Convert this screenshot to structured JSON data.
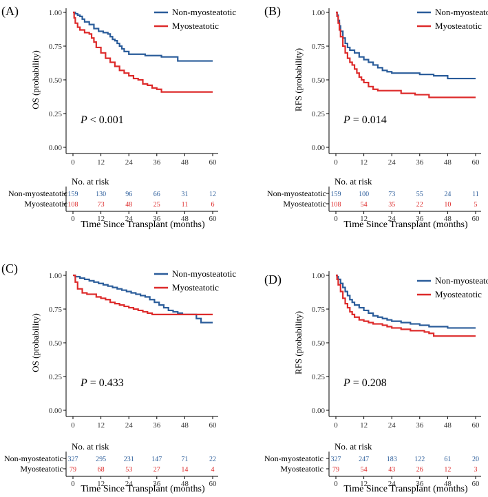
{
  "colors": {
    "non": "#2a5c9a",
    "myo": "#dd2a2a",
    "axis": "#000000",
    "tick": "#333333"
  },
  "common": {
    "risk_title": "No. at risk",
    "x_label": "Time Since Transplant (months)",
    "row_non": "Non-myosteatotic",
    "row_myo": "Myosteatotic"
  },
  "chart_data": [
    {
      "type": "line",
      "label": "(A)",
      "ylabel": "OS (probability)",
      "xlabel": "Time Since Transplant (months)",
      "p_label": "P",
      "p_text": " < 0.001",
      "xlim": [
        0,
        60
      ],
      "ylim": [
        0,
        1
      ],
      "x_ticks": [
        "0",
        "12",
        "24",
        "36",
        "48",
        "60"
      ],
      "y_ticks": [
        "0.00",
        "0.25",
        "0.50",
        "0.75",
        "1.00"
      ],
      "legend_position": "top-right",
      "series": [
        {
          "name": "Non-myosteatotic",
          "color": "#2a5c9a",
          "points": [
            [
              0,
              1
            ],
            [
              1,
              0.99
            ],
            [
              2,
              0.98
            ],
            [
              3,
              0.97
            ],
            [
              4,
              0.95
            ],
            [
              5,
              0.93
            ],
            [
              7,
              0.91
            ],
            [
              9,
              0.88
            ],
            [
              11,
              0.86
            ],
            [
              13,
              0.85
            ],
            [
              15,
              0.84
            ],
            [
              16,
              0.82
            ],
            [
              17,
              0.8
            ],
            [
              18,
              0.79
            ],
            [
              19,
              0.77
            ],
            [
              20,
              0.75
            ],
            [
              21,
              0.73
            ],
            [
              22,
              0.71
            ],
            [
              24,
              0.69
            ],
            [
              30,
              0.69
            ],
            [
              31,
              0.68
            ],
            [
              36,
              0.68
            ],
            [
              38,
              0.67
            ],
            [
              44,
              0.67
            ],
            [
              45,
              0.64
            ],
            [
              60,
              0.64
            ]
          ]
        },
        {
          "name": "Myosteatotic",
          "color": "#dd2a2a",
          "points": [
            [
              0,
              1
            ],
            [
              0.5,
              0.96
            ],
            [
              1,
              0.92
            ],
            [
              2,
              0.89
            ],
            [
              3,
              0.87
            ],
            [
              5,
              0.85
            ],
            [
              7,
              0.84
            ],
            [
              8,
              0.81
            ],
            [
              9,
              0.78
            ],
            [
              10,
              0.74
            ],
            [
              12,
              0.7
            ],
            [
              14,
              0.66
            ],
            [
              16,
              0.63
            ],
            [
              18,
              0.6
            ],
            [
              20,
              0.57
            ],
            [
              22,
              0.55
            ],
            [
              24,
              0.53
            ],
            [
              26,
              0.51
            ],
            [
              28,
              0.5
            ],
            [
              30,
              0.47
            ],
            [
              32,
              0.46
            ],
            [
              34,
              0.44
            ],
            [
              36,
              0.43
            ],
            [
              38,
              0.41
            ],
            [
              40,
              0.41
            ],
            [
              60,
              0.41
            ]
          ]
        }
      ],
      "risk_table": {
        "times": [
          0,
          12,
          24,
          36,
          48,
          60
        ],
        "non": [
          "159",
          "130",
          "96",
          "66",
          "31",
          "12"
        ],
        "myo": [
          "108",
          "73",
          "48",
          "25",
          "11",
          "6"
        ]
      }
    },
    {
      "type": "line",
      "label": "(B)",
      "ylabel": "RFS (probability)",
      "xlabel": "Time Since Transplant (months)",
      "p_label": "P",
      "p_text": " = 0.014",
      "xlim": [
        0,
        60
      ],
      "ylim": [
        0,
        1
      ],
      "x_ticks": [
        "0",
        "12",
        "24",
        "36",
        "48",
        "60"
      ],
      "y_ticks": [
        "0.00",
        "0.25",
        "0.50",
        "0.75",
        "1.00"
      ],
      "legend_position": "top-right",
      "series": [
        {
          "name": "Non-myosteatotic",
          "color": "#2a5c9a",
          "points": [
            [
              0,
              1
            ],
            [
              0.5,
              0.98
            ],
            [
              1,
              0.94
            ],
            [
              1.5,
              0.9
            ],
            [
              2,
              0.86
            ],
            [
              3,
              0.81
            ],
            [
              4,
              0.77
            ],
            [
              5,
              0.74
            ],
            [
              6,
              0.72
            ],
            [
              8,
              0.7
            ],
            [
              10,
              0.67
            ],
            [
              12,
              0.65
            ],
            [
              14,
              0.63
            ],
            [
              16,
              0.61
            ],
            [
              18,
              0.59
            ],
            [
              20,
              0.57
            ],
            [
              22,
              0.56
            ],
            [
              24,
              0.55
            ],
            [
              30,
              0.55
            ],
            [
              36,
              0.54
            ],
            [
              42,
              0.53
            ],
            [
              48,
              0.51
            ],
            [
              60,
              0.51
            ]
          ]
        },
        {
          "name": "Myosteatotic",
          "color": "#dd2a2a",
          "points": [
            [
              0,
              1
            ],
            [
              0.5,
              0.97
            ],
            [
              1,
              0.92
            ],
            [
              1.5,
              0.87
            ],
            [
              2,
              0.82
            ],
            [
              3,
              0.75
            ],
            [
              4,
              0.7
            ],
            [
              5,
              0.66
            ],
            [
              6,
              0.63
            ],
            [
              7,
              0.61
            ],
            [
              8,
              0.58
            ],
            [
              9,
              0.55
            ],
            [
              10,
              0.52
            ],
            [
              11,
              0.5
            ],
            [
              12,
              0.48
            ],
            [
              14,
              0.45
            ],
            [
              16,
              0.43
            ],
            [
              18,
              0.42
            ],
            [
              24,
              0.42
            ],
            [
              28,
              0.4
            ],
            [
              34,
              0.39
            ],
            [
              40,
              0.37
            ],
            [
              48,
              0.37
            ],
            [
              60,
              0.37
            ]
          ]
        }
      ],
      "risk_table": {
        "times": [
          0,
          12,
          24,
          36,
          48,
          60
        ],
        "non": [
          "159",
          "100",
          "73",
          "55",
          "24",
          "11"
        ],
        "myo": [
          "108",
          "54",
          "35",
          "22",
          "10",
          "5"
        ]
      }
    },
    {
      "type": "line",
      "label": "(C)",
      "ylabel": "OS (probability)",
      "xlabel": "Time Since Transplant (months)",
      "p_label": "P",
      "p_text": " = 0.433",
      "xlim": [
        0,
        60
      ],
      "ylim": [
        0,
        1
      ],
      "x_ticks": [
        "0",
        "12",
        "24",
        "36",
        "48",
        "60"
      ],
      "y_ticks": [
        "0.00",
        "0.25",
        "0.50",
        "0.75",
        "1.00"
      ],
      "legend_position": "top-right",
      "series": [
        {
          "name": "Non-myosteatotic",
          "color": "#2a5c9a",
          "points": [
            [
              0,
              1
            ],
            [
              1,
              0.99
            ],
            [
              3,
              0.98
            ],
            [
              5,
              0.97
            ],
            [
              7,
              0.96
            ],
            [
              9,
              0.95
            ],
            [
              11,
              0.94
            ],
            [
              13,
              0.93
            ],
            [
              15,
              0.92
            ],
            [
              17,
              0.91
            ],
            [
              19,
              0.9
            ],
            [
              21,
              0.89
            ],
            [
              23,
              0.88
            ],
            [
              25,
              0.87
            ],
            [
              27,
              0.86
            ],
            [
              29,
              0.85
            ],
            [
              31,
              0.84
            ],
            [
              33,
              0.82
            ],
            [
              35,
              0.8
            ],
            [
              37,
              0.78
            ],
            [
              39,
              0.76
            ],
            [
              41,
              0.74
            ],
            [
              43,
              0.73
            ],
            [
              45,
              0.72
            ],
            [
              47,
              0.71
            ],
            [
              52,
              0.71
            ],
            [
              53,
              0.68
            ],
            [
              55,
              0.65
            ],
            [
              60,
              0.65
            ]
          ]
        },
        {
          "name": "Myosteatotic",
          "color": "#dd2a2a",
          "points": [
            [
              0,
              1
            ],
            [
              1,
              0.95
            ],
            [
              2,
              0.9
            ],
            [
              4,
              0.87
            ],
            [
              6,
              0.86
            ],
            [
              8,
              0.86
            ],
            [
              10,
              0.84
            ],
            [
              12,
              0.83
            ],
            [
              14,
              0.82
            ],
            [
              16,
              0.8
            ],
            [
              18,
              0.79
            ],
            [
              20,
              0.78
            ],
            [
              22,
              0.77
            ],
            [
              24,
              0.76
            ],
            [
              26,
              0.75
            ],
            [
              28,
              0.74
            ],
            [
              30,
              0.73
            ],
            [
              32,
              0.72
            ],
            [
              34,
              0.71
            ],
            [
              60,
              0.71
            ]
          ]
        }
      ],
      "risk_table": {
        "times": [
          0,
          12,
          24,
          36,
          48,
          60
        ],
        "non": [
          "327",
          "295",
          "231",
          "147",
          "71",
          "22"
        ],
        "myo": [
          "79",
          "68",
          "53",
          "27",
          "14",
          "4"
        ]
      }
    },
    {
      "type": "line",
      "label": "(D)",
      "ylabel": "RFS (probability)",
      "xlabel": "Time Since Transplant (months)",
      "p_label": "P",
      "p_text": " = 0.208",
      "xlim": [
        0,
        60
      ],
      "ylim": [
        0,
        1
      ],
      "x_ticks": [
        "0",
        "12",
        "24",
        "36",
        "48",
        "60"
      ],
      "y_ticks": [
        "0.00",
        "0.25",
        "0.50",
        "0.75",
        "1.00"
      ],
      "legend_position": "top-right",
      "series": [
        {
          "name": "Non-myosteatotic",
          "color": "#2a5c9a",
          "points": [
            [
              0,
              1
            ],
            [
              0.5,
              0.99
            ],
            [
              1,
              0.97
            ],
            [
              2,
              0.94
            ],
            [
              3,
              0.91
            ],
            [
              4,
              0.88
            ],
            [
              5,
              0.85
            ],
            [
              6,
              0.82
            ],
            [
              7,
              0.8
            ],
            [
              8,
              0.78
            ],
            [
              10,
              0.76
            ],
            [
              12,
              0.74
            ],
            [
              14,
              0.72
            ],
            [
              16,
              0.7
            ],
            [
              18,
              0.69
            ],
            [
              20,
              0.68
            ],
            [
              22,
              0.67
            ],
            [
              24,
              0.66
            ],
            [
              28,
              0.65
            ],
            [
              32,
              0.64
            ],
            [
              36,
              0.63
            ],
            [
              40,
              0.62
            ],
            [
              46,
              0.62
            ],
            [
              48,
              0.61
            ],
            [
              60,
              0.61
            ]
          ]
        },
        {
          "name": "Myosteatotic",
          "color": "#dd2a2a",
          "points": [
            [
              0,
              1
            ],
            [
              0.5,
              0.97
            ],
            [
              1,
              0.93
            ],
            [
              2,
              0.88
            ],
            [
              3,
              0.83
            ],
            [
              4,
              0.79
            ],
            [
              5,
              0.76
            ],
            [
              6,
              0.73
            ],
            [
              7,
              0.71
            ],
            [
              8,
              0.69
            ],
            [
              10,
              0.67
            ],
            [
              12,
              0.66
            ],
            [
              14,
              0.65
            ],
            [
              16,
              0.64
            ],
            [
              18,
              0.64
            ],
            [
              20,
              0.63
            ],
            [
              22,
              0.62
            ],
            [
              24,
              0.61
            ],
            [
              28,
              0.6
            ],
            [
              32,
              0.59
            ],
            [
              38,
              0.58
            ],
            [
              40,
              0.57
            ],
            [
              42,
              0.55
            ],
            [
              60,
              0.55
            ]
          ]
        }
      ],
      "risk_table": {
        "times": [
          0,
          12,
          24,
          36,
          48,
          60
        ],
        "non": [
          "327",
          "247",
          "183",
          "122",
          "61",
          "20"
        ],
        "myo": [
          "79",
          "54",
          "43",
          "26",
          "12",
          "3"
        ]
      }
    }
  ]
}
